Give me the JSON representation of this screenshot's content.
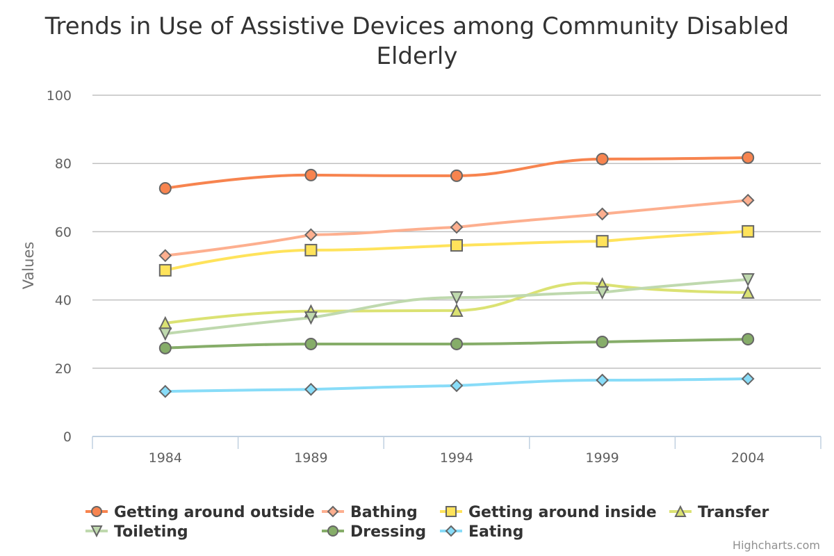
{
  "chart_data": {
    "type": "line",
    "title": "Trends in Use of Assistive Devices among Community Disabled Elderly",
    "title_lines": [
      "Trends in Use of Assistive Devices among Community Disabled",
      "Elderly"
    ],
    "xlabel": "",
    "ylabel": "Values",
    "categories": [
      "1984",
      "1989",
      "1994",
      "1999",
      "2004"
    ],
    "ylim": [
      0,
      100
    ],
    "yticks": [
      0,
      20,
      40,
      60,
      80,
      100
    ],
    "grid": true,
    "smooth": true,
    "legend_position": "bottom",
    "series": [
      {
        "name": "Getting around outside",
        "color": "#f7844f",
        "marker": "circle",
        "values": [
          72.7,
          76.6,
          76.4,
          81.3,
          81.7
        ]
      },
      {
        "name": "Bathing",
        "color": "#fdaf8f",
        "marker": "diamond",
        "values": [
          53.0,
          59.1,
          61.3,
          65.2,
          69.2
        ]
      },
      {
        "name": "Getting around inside",
        "color": "#ffe35b",
        "marker": "square",
        "values": [
          48.7,
          54.6,
          56.0,
          57.2,
          60.1
        ]
      },
      {
        "name": "Transfer",
        "color": "#dbe273",
        "marker": "triangle",
        "values": [
          33.2,
          36.7,
          36.9,
          44.6,
          42.2
        ]
      },
      {
        "name": "Toileting",
        "color": "#bfd9ae",
        "marker": "triangle-down",
        "values": [
          30.1,
          34.8,
          40.7,
          42.2,
          46.0
        ]
      },
      {
        "name": "Dressing",
        "color": "#86ad69",
        "marker": "circle",
        "values": [
          25.9,
          27.1,
          27.1,
          27.7,
          28.5
        ]
      },
      {
        "name": "Eating",
        "color": "#88dcf8",
        "marker": "diamond",
        "values": [
          13.2,
          13.8,
          14.9,
          16.5,
          16.9
        ]
      }
    ],
    "credits": "Highcharts.com"
  }
}
